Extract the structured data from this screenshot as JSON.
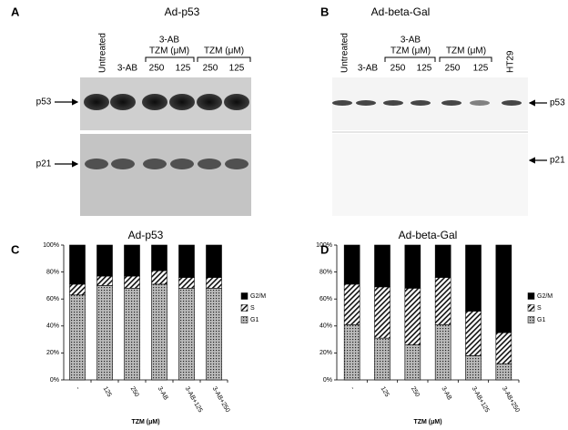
{
  "blots": [
    {
      "letter": "A",
      "title": "Ad-p53",
      "lane_labels": [
        "Untreated",
        "3-AB",
        "250",
        "125",
        "250",
        "125"
      ],
      "group_labels": [
        "3-AB",
        "TZM (μM)",
        "TZM (μM)"
      ],
      "bands": [
        "p53",
        "p21"
      ]
    },
    {
      "letter": "B",
      "title": "Ad-beta-Gal",
      "lane_labels": [
        "Untreated",
        "3-AB",
        "250",
        "125",
        "250",
        "125",
        "HT29"
      ],
      "group_labels": [
        "3-AB",
        "TZM (μM)",
        "TZM (μM)"
      ],
      "bands": [
        "p53",
        "p21"
      ]
    }
  ],
  "chart_data": [
    {
      "type": "stacked_bar",
      "letter": "C",
      "title": "Ad-p53",
      "x_label": "TZM (μM)",
      "categories": [
        "-",
        "125",
        "250",
        "3-AB",
        "3-AB+125",
        "3-AB+250"
      ],
      "series": [
        {
          "name": "G1",
          "color": "#888888",
          "pattern": "dots",
          "values": [
            63,
            70,
            68,
            71,
            68,
            68
          ]
        },
        {
          "name": "S",
          "color": "#ffffff",
          "pattern": "hatch",
          "values": [
            8,
            7,
            9,
            10,
            8,
            8
          ]
        },
        {
          "name": "G2/M",
          "color": "#000000",
          "pattern": "solid",
          "values": [
            29,
            23,
            23,
            19,
            24,
            24
          ]
        }
      ],
      "ylim": [
        0,
        100
      ],
      "yticks": [
        {
          "value": 0,
          "label": "0%"
        },
        {
          "value": 20,
          "label": "20%"
        },
        {
          "value": 40,
          "label": "40%"
        },
        {
          "value": 60,
          "label": "60%"
        },
        {
          "value": 80,
          "label": "80%"
        },
        {
          "value": 100,
          "label": "100%"
        }
      ]
    },
    {
      "type": "stacked_bar",
      "letter": "D",
      "title": "Ad-beta-Gal",
      "x_label": "TZM (μM)",
      "categories": [
        "-",
        "125",
        "250",
        "3-AB",
        "3-AB+125",
        "3-AB+250"
      ],
      "series": [
        {
          "name": "G1",
          "color": "#888888",
          "pattern": "dots",
          "values": [
            41,
            31,
            26,
            41,
            18,
            12
          ]
        },
        {
          "name": "S",
          "color": "#ffffff",
          "pattern": "hatch",
          "values": [
            30,
            38,
            42,
            35,
            33,
            23
          ]
        },
        {
          "name": "G2/M",
          "color": "#000000",
          "pattern": "solid",
          "values": [
            29,
            31,
            32,
            24,
            49,
            65
          ]
        }
      ],
      "ylim": [
        0,
        100
      ],
      "yticks": [
        {
          "value": 0,
          "label": "0%"
        },
        {
          "value": 20,
          "label": "20%"
        },
        {
          "value": 40,
          "label": "40%"
        },
        {
          "value": 60,
          "label": "60%"
        },
        {
          "value": 80,
          "label": "80%"
        },
        {
          "value": 100,
          "label": "100%"
        }
      ]
    }
  ]
}
